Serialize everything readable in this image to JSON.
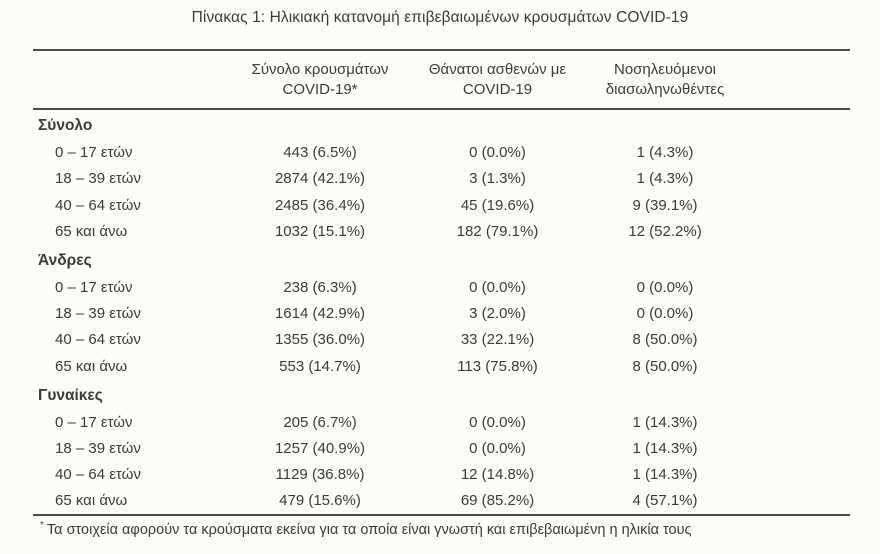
{
  "title": "Πίνακας 1: Ηλικιακή κατανομή επιβεβαιωμένων κρουσμάτων COVID-19",
  "table": {
    "columns": [
      {
        "line1": "Σύνολο κρουσμάτων",
        "line2": "COVID-19*"
      },
      {
        "line1": "Θάνατοι ασθενών με",
        "line2": "COVID-19"
      },
      {
        "line1": "Νοσηλευόμενοι",
        "line2": "διασωληνωθέντες"
      }
    ],
    "sections": [
      {
        "label": "Σύνολο",
        "rows": [
          {
            "age": "0 – 17 ετών",
            "cases": "443 (6.5%)",
            "deaths": "0 (0.0%)",
            "intubated": "1 (4.3%)"
          },
          {
            "age": "18 – 39 ετών",
            "cases": "2874 (42.1%)",
            "deaths": "3 (1.3%)",
            "intubated": "1 (4.3%)"
          },
          {
            "age": "40 – 64 ετών",
            "cases": "2485 (36.4%)",
            "deaths": "45 (19.6%)",
            "intubated": "9 (39.1%)"
          },
          {
            "age": "65 και άνω",
            "cases": "1032 (15.1%)",
            "deaths": "182 (79.1%)",
            "intubated": "12 (52.2%)"
          }
        ]
      },
      {
        "label": "Άνδρες",
        "rows": [
          {
            "age": "0 – 17 ετών",
            "cases": "238 (6.3%)",
            "deaths": "0 (0.0%)",
            "intubated": "0 (0.0%)"
          },
          {
            "age": "18 – 39 ετών",
            "cases": "1614 (42.9%)",
            "deaths": "3 (2.0%)",
            "intubated": "0 (0.0%)"
          },
          {
            "age": "40 – 64 ετών",
            "cases": "1355 (36.0%)",
            "deaths": "33 (22.1%)",
            "intubated": "8 (50.0%)"
          },
          {
            "age": "65 και άνω",
            "cases": "553 (14.7%)",
            "deaths": "113 (75.8%)",
            "intubated": "8 (50.0%)"
          }
        ]
      },
      {
        "label": "Γυναίκες",
        "rows": [
          {
            "age": "0 – 17 ετών",
            "cases": "205 (6.7%)",
            "deaths": "0 (0.0%)",
            "intubated": "1 (14.3%)"
          },
          {
            "age": "18 – 39 ετών",
            "cases": "1257 (40.9%)",
            "deaths": "0 (0.0%)",
            "intubated": "1 (14.3%)"
          },
          {
            "age": "40 – 64 ετών",
            "cases": "1129 (36.8%)",
            "deaths": "12 (14.8%)",
            "intubated": "1 (14.3%)"
          },
          {
            "age": "65 και άνω",
            "cases": "479 (15.6%)",
            "deaths": "69 (85.2%)",
            "intubated": "4 (57.1%)"
          }
        ]
      }
    ]
  },
  "footnote": {
    "marker": "*",
    "text": "Τα στοιχεία αφορούν τα κρούσματα εκείνα για τα οποία είναι γνωστή και επιβεβαιωμένη η ηλικία τους"
  },
  "colors": {
    "text": "#3c3c3c",
    "rule": "#4a4a4a",
    "background": "#fdfcf6"
  }
}
